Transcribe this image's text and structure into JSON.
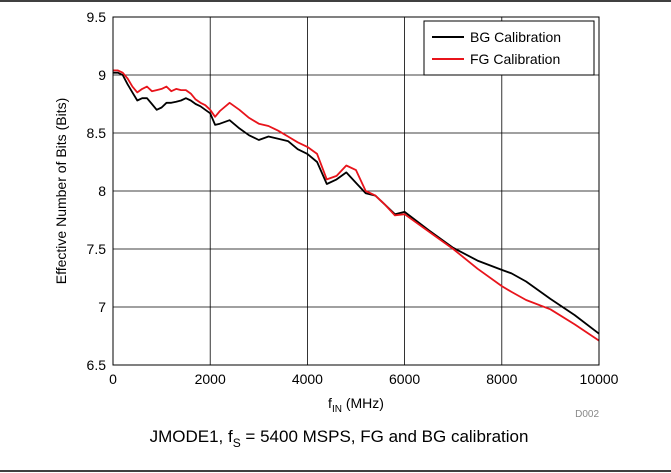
{
  "chart_data": {
    "type": "line",
    "title": "",
    "xlabel_main": "f",
    "xlabel_sub": "IN",
    "xlabel_unit": " (MHz)",
    "ylabel": "Effective Number of Bits (Bits)",
    "xlim": [
      0,
      10000
    ],
    "ylim": [
      6.5,
      9.5
    ],
    "x_ticks": [
      0,
      2000,
      4000,
      6000,
      8000,
      10000
    ],
    "y_ticks": [
      6.5,
      7,
      7.5,
      8,
      8.5,
      9,
      9.5
    ],
    "x_tick_labels": [
      "0",
      "2000",
      "4000",
      "6000",
      "8000",
      "10000"
    ],
    "y_tick_labels": [
      "6.5",
      "7",
      "7.5",
      "8",
      "8.5",
      "9",
      "9.5"
    ],
    "grid": true,
    "legend_position": "top-right",
    "series": [
      {
        "name": "BG Calibration",
        "color": "#000000",
        "x": [
          0,
          100,
          200,
          300,
          400,
          500,
          600,
          700,
          800,
          900,
          1000,
          1100,
          1200,
          1300,
          1400,
          1500,
          1600,
          1700,
          1800,
          1900,
          2000,
          2100,
          2200,
          2400,
          2600,
          2800,
          3000,
          3200,
          3400,
          3600,
          3800,
          4000,
          4200,
          4400,
          4600,
          4800,
          5000,
          5200,
          5400,
          5600,
          5800,
          6000,
          6500,
          7000,
          7500,
          8000,
          8200,
          8500,
          9000,
          9500,
          10000
        ],
        "values": [
          9.02,
          9.02,
          9.0,
          8.92,
          8.85,
          8.78,
          8.8,
          8.8,
          8.75,
          8.7,
          8.72,
          8.76,
          8.76,
          8.77,
          8.78,
          8.8,
          8.78,
          8.75,
          8.73,
          8.7,
          8.67,
          8.57,
          8.58,
          8.61,
          8.54,
          8.48,
          8.44,
          8.47,
          8.45,
          8.43,
          8.36,
          8.32,
          8.25,
          8.06,
          8.1,
          8.16,
          8.07,
          7.98,
          7.96,
          7.88,
          7.8,
          7.82,
          7.66,
          7.51,
          7.4,
          7.32,
          7.29,
          7.22,
          7.07,
          6.93,
          6.77
        ]
      },
      {
        "name": "FG Calibration",
        "color": "#e8141b",
        "x": [
          0,
          100,
          200,
          300,
          400,
          500,
          600,
          700,
          800,
          900,
          1000,
          1100,
          1200,
          1300,
          1400,
          1500,
          1600,
          1700,
          1800,
          1900,
          2000,
          2100,
          2200,
          2400,
          2600,
          2800,
          3000,
          3200,
          3400,
          3600,
          3800,
          4000,
          4200,
          4400,
          4600,
          4800,
          5000,
          5200,
          5400,
          5600,
          5800,
          6000,
          6500,
          7000,
          7500,
          8000,
          8200,
          8500,
          9000,
          9500,
          10000
        ],
        "values": [
          9.04,
          9.04,
          9.02,
          8.97,
          8.9,
          8.85,
          8.88,
          8.9,
          8.86,
          8.87,
          8.88,
          8.9,
          8.86,
          8.88,
          8.87,
          8.87,
          8.84,
          8.79,
          8.76,
          8.74,
          8.7,
          8.64,
          8.69,
          8.76,
          8.7,
          8.63,
          8.58,
          8.56,
          8.52,
          8.47,
          8.42,
          8.38,
          8.32,
          8.1,
          8.13,
          8.22,
          8.18,
          8.0,
          7.96,
          7.88,
          7.79,
          7.8,
          7.65,
          7.5,
          7.33,
          7.18,
          7.13,
          7.06,
          6.98,
          6.85,
          6.71
        ]
      }
    ]
  },
  "figure_id": "D002",
  "caption": {
    "prefix": "JMODE1, f",
    "sub": "S",
    "suffix": " = 5400 MSPS, FG and BG calibration"
  },
  "colors": {
    "grid": "#000000",
    "frame": "#000000",
    "figure_id": "#888888"
  }
}
